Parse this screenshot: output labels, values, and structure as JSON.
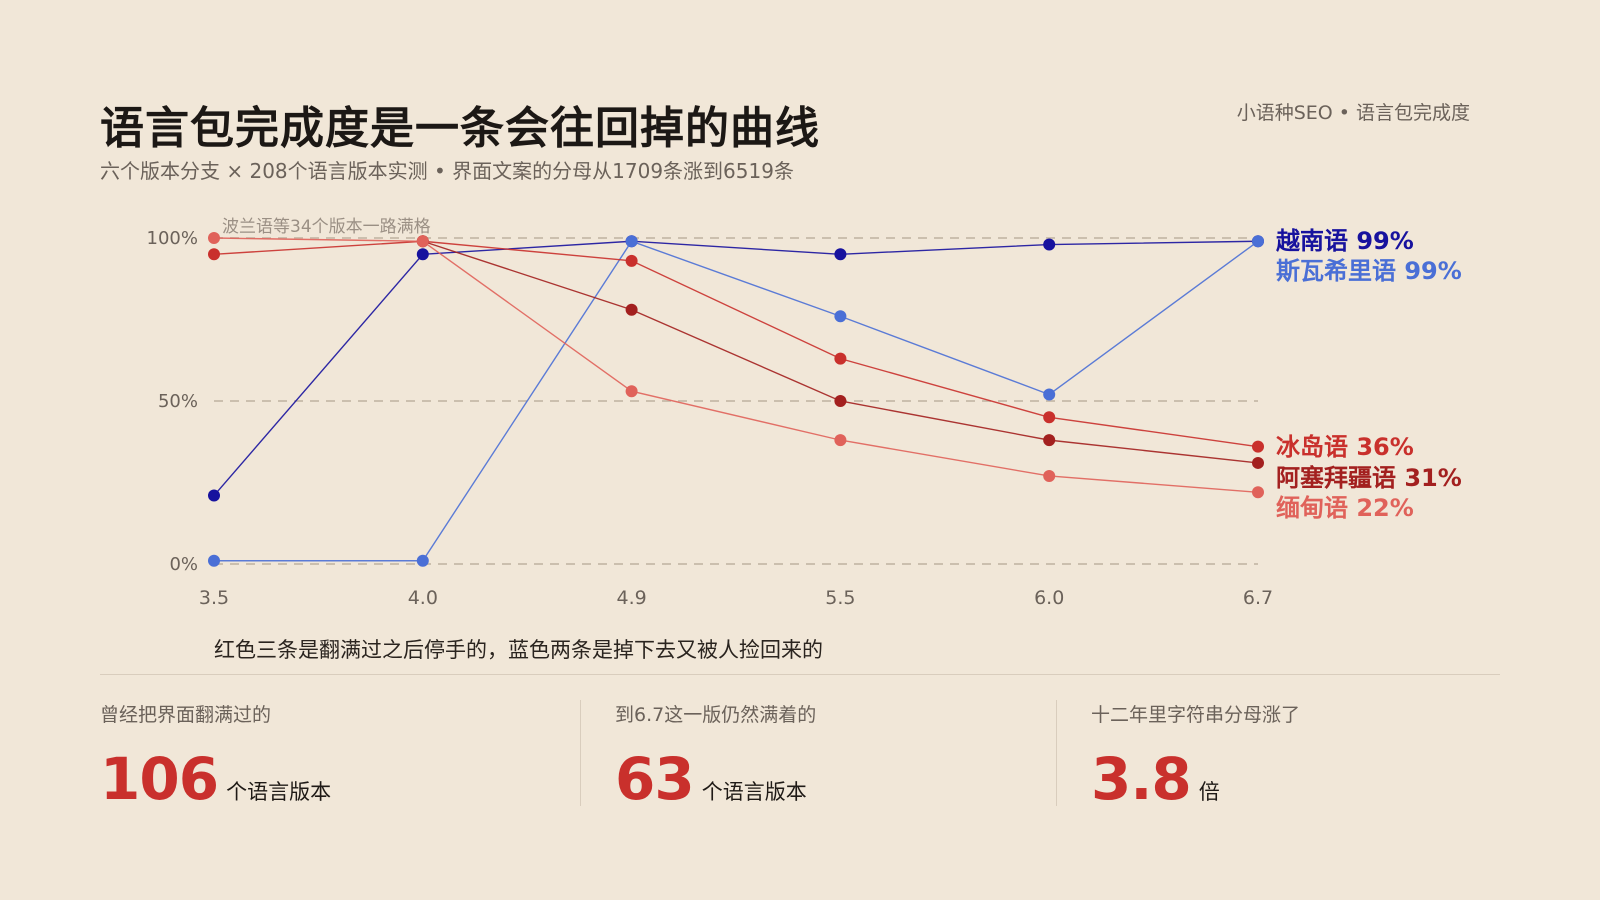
{
  "header": {
    "title": "语言包完成度是一条会往回掉的曲线",
    "subtitle": "六个版本分支 × 208个语言版本实测 • 界面文案的分母从1709条涨到6519条",
    "brand": "小语种SEO • 语言包完成度"
  },
  "chart_data": {
    "type": "line",
    "x": [
      "3.5",
      "4.0",
      "4.9",
      "5.5",
      "6.0",
      "6.7"
    ],
    "y_ticks": [
      "100%",
      "50%",
      "0%"
    ],
    "ylim": [
      0,
      100
    ],
    "grid": true,
    "annotation": "波兰语等34个版本一路满格",
    "series": [
      {
        "name": "越南语",
        "end_label": "越南语 99%",
        "color": "#17129e",
        "values": [
          21,
          95,
          99,
          95,
          98,
          99
        ]
      },
      {
        "name": "斯瓦希里语",
        "end_label": "斯瓦希里语 99%",
        "color": "#4a6fd6",
        "values": [
          1,
          1,
          99,
          76,
          52,
          99
        ]
      },
      {
        "name": "冰岛语",
        "end_label": "冰岛语 36%",
        "color": "#c9302c",
        "values": [
          95,
          99,
          93,
          63,
          45,
          36
        ]
      },
      {
        "name": "阿塞拜疆语",
        "end_label": "阿塞拜疆语 31%",
        "color": "#a3201f",
        "values": [
          null,
          99,
          78,
          50,
          38,
          31
        ]
      },
      {
        "name": "缅甸语",
        "end_label": "缅甸语 22%",
        "color": "#e0625a",
        "values": [
          100,
          99,
          53,
          38,
          27,
          22
        ]
      }
    ]
  },
  "caption": "红色三条是翻满过之后停手的，蓝色两条是掉下去又被人捡回来的",
  "stats": [
    {
      "label": "曾经把界面翻满过的",
      "value": "106",
      "unit": "个语言版本"
    },
    {
      "label": "到6.7这一版仍然满着的",
      "value": "63",
      "unit": "个语言版本"
    },
    {
      "label": "十二年里字符串分母涨了",
      "value": "3.8",
      "unit": "倍"
    }
  ]
}
